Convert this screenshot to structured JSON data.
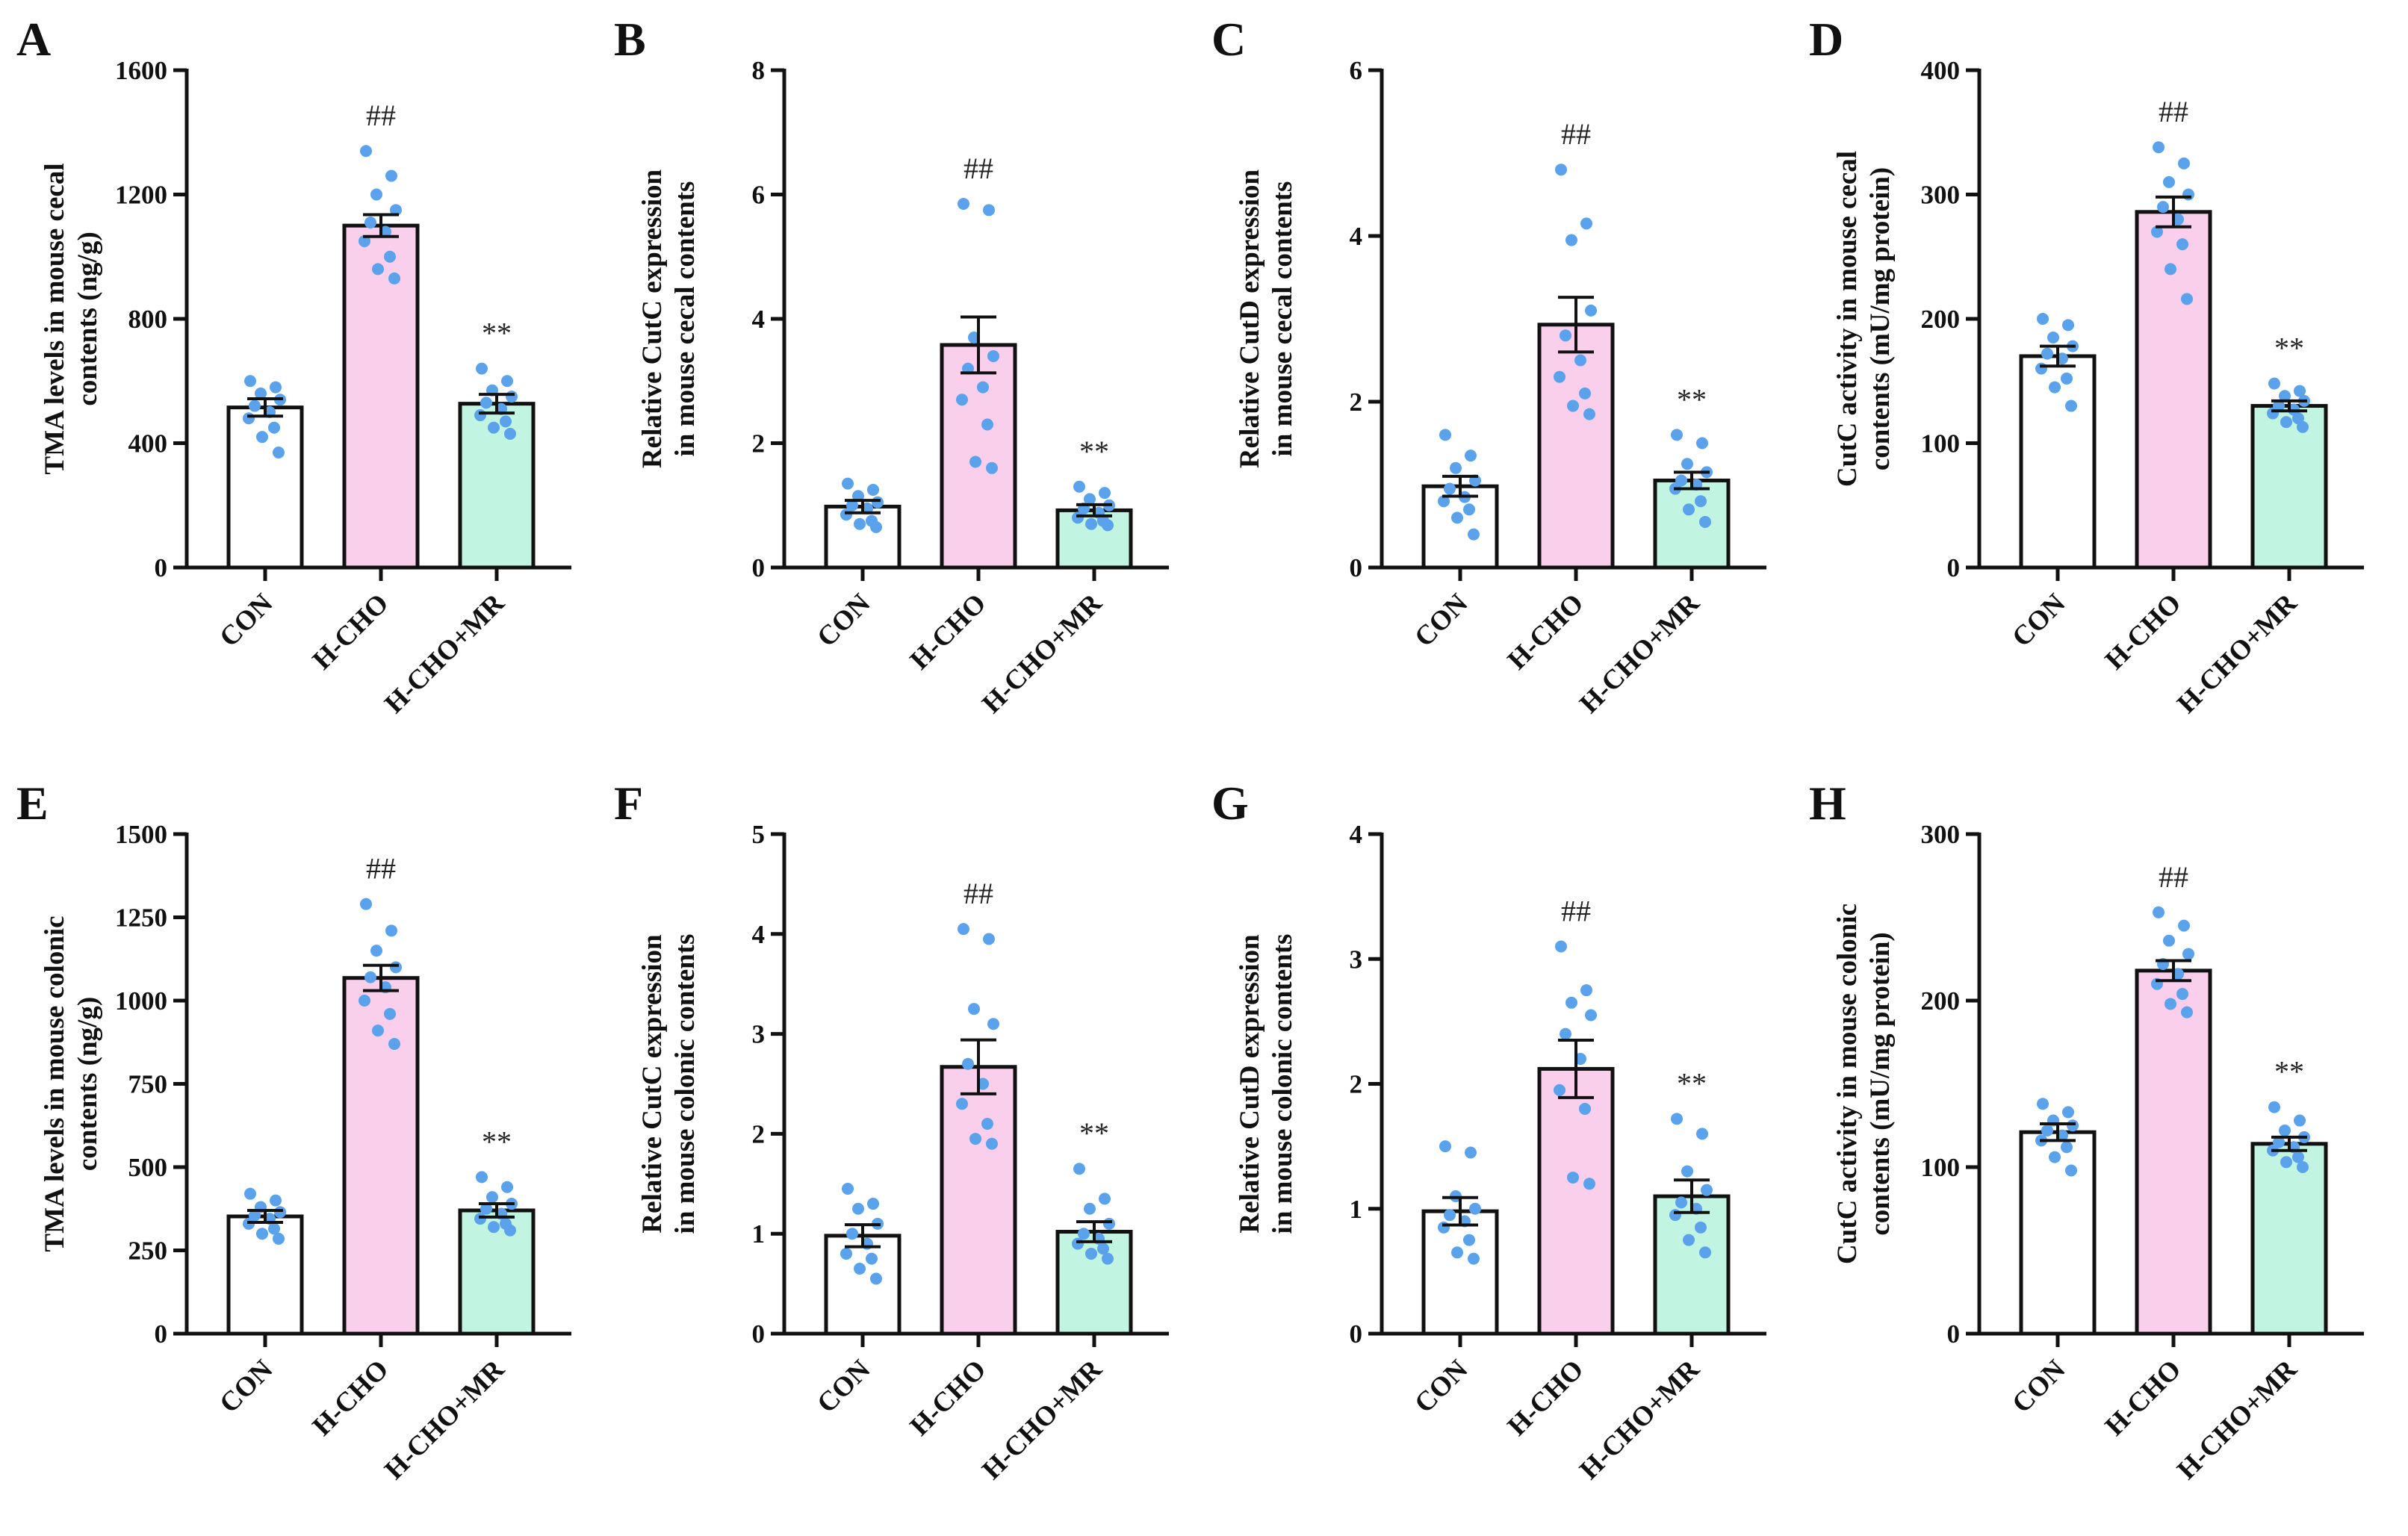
{
  "colors": {
    "con": "#ffffff",
    "hcho": "#f9cfeb",
    "hchomr": "#c2f5e1",
    "dot": "#5aa2ec",
    "ink": "#111111"
  },
  "chart_data": [
    {
      "panel": "A",
      "type": "bar",
      "title": "",
      "ylabel": [
        "TMA levels in mouse cecal",
        "contents (ng/g)"
      ],
      "categories": [
        "CON",
        "H-CHO",
        "H-CHO+MR"
      ],
      "ylim": [
        0,
        1600
      ],
      "yticks": [
        0,
        400,
        800,
        1200,
        1600
      ],
      "ytick_labels": [
        "0",
        "400",
        "800",
        "1200",
        "1600"
      ],
      "means": [
        515,
        1100,
        527
      ],
      "errors": [
        28,
        35,
        30
      ],
      "points": [
        [
          600,
          580,
          560,
          540,
          520,
          500,
          480,
          450,
          420,
          370
        ],
        [
          1340,
          1260,
          1200,
          1150,
          1110,
          1080,
          1050,
          1000,
          960,
          930
        ],
        [
          640,
          600,
          570,
          550,
          530,
          510,
          490,
          470,
          450,
          430
        ]
      ],
      "annotations": [
        "",
        "##",
        "**"
      ]
    },
    {
      "panel": "B",
      "type": "bar",
      "title": "",
      "ylabel": [
        "Relative CutC expression",
        "in mouse cecal contents"
      ],
      "categories": [
        "CON",
        "H-CHO",
        "H-CHO+MR"
      ],
      "ylim": [
        0,
        8
      ],
      "yticks": [
        0,
        2,
        4,
        6,
        8
      ],
      "ytick_labels": [
        "0",
        "2",
        "4",
        "6",
        "8"
      ],
      "means": [
        0.98,
        3.58,
        0.92
      ],
      "errors": [
        0.1,
        0.45,
        0.09
      ],
      "points": [
        [
          1.35,
          1.25,
          1.15,
          1.05,
          1.0,
          0.95,
          0.85,
          0.75,
          0.7,
          0.65
        ],
        [
          5.85,
          5.75,
          3.7,
          3.4,
          3.2,
          2.9,
          2.7,
          2.3,
          1.7,
          1.6
        ],
        [
          1.3,
          1.2,
          1.1,
          1.0,
          0.95,
          0.88,
          0.8,
          0.75,
          0.7,
          0.68
        ]
      ],
      "annotations": [
        "",
        "##",
        "**"
      ]
    },
    {
      "panel": "C",
      "type": "bar",
      "title": "",
      "ylabel": [
        "Relative CutD expression",
        "in mouse cecal contents"
      ],
      "categories": [
        "CON",
        "H-CHO",
        "H-CHO+MR"
      ],
      "ylim": [
        0,
        6
      ],
      "yticks": [
        0,
        2,
        4,
        6
      ],
      "ytick_labels": [
        "0",
        "2",
        "4",
        "6"
      ],
      "means": [
        0.98,
        2.93,
        1.05
      ],
      "errors": [
        0.12,
        0.33,
        0.1
      ],
      "points": [
        [
          1.6,
          1.35,
          1.2,
          1.05,
          0.95,
          0.85,
          0.8,
          0.7,
          0.6,
          0.4
        ],
        [
          4.8,
          4.15,
          3.95,
          3.1,
          2.8,
          2.5,
          2.3,
          2.1,
          1.95,
          1.85
        ],
        [
          1.6,
          1.5,
          1.25,
          1.15,
          1.05,
          1.0,
          0.95,
          0.8,
          0.7,
          0.55
        ]
      ],
      "annotations": [
        "",
        "##",
        "**"
      ]
    },
    {
      "panel": "D",
      "type": "bar",
      "title": "",
      "ylabel": [
        "CutC activity in mouse cecal",
        "contents (mU/mg protein)"
      ],
      "categories": [
        "CON",
        "H-CHO",
        "H-CHO+MR"
      ],
      "ylim": [
        0,
        400
      ],
      "yticks": [
        0,
        100,
        200,
        300,
        400
      ],
      "ytick_labels": [
        "0",
        "100",
        "200",
        "300",
        "400"
      ],
      "means": [
        170,
        286,
        130
      ],
      "errors": [
        8,
        12,
        4
      ],
      "points": [
        [
          200,
          195,
          185,
          178,
          172,
          168,
          160,
          152,
          145,
          130
        ],
        [
          338,
          325,
          310,
          300,
          290,
          280,
          270,
          260,
          240,
          216
        ],
        [
          148,
          142,
          138,
          134,
          130,
          127,
          124,
          120,
          117,
          113
        ]
      ],
      "annotations": [
        "",
        "##",
        "**"
      ]
    },
    {
      "panel": "E",
      "type": "bar",
      "title": "",
      "ylabel": [
        "TMA levels in mouse colonic",
        "contents (ng/g)"
      ],
      "categories": [
        "CON",
        "H-CHO",
        "H-CHO+MR"
      ],
      "ylim": [
        0,
        1500
      ],
      "yticks": [
        0,
        250,
        500,
        750,
        1000,
        1250,
        1500
      ],
      "ytick_labels": [
        "0",
        "250",
        "500",
        "750",
        "1000",
        "1250",
        "1500"
      ],
      "means": [
        352,
        1068,
        370
      ],
      "errors": [
        18,
        38,
        20
      ],
      "points": [
        [
          420,
          400,
          380,
          365,
          355,
          345,
          330,
          315,
          300,
          285
        ],
        [
          1290,
          1210,
          1150,
          1100,
          1070,
          1040,
          1000,
          960,
          910,
          870
        ],
        [
          470,
          440,
          410,
          390,
          375,
          360,
          345,
          330,
          320,
          310
        ]
      ],
      "annotations": [
        "",
        "##",
        "**"
      ]
    },
    {
      "panel": "F",
      "type": "bar",
      "title": "",
      "ylabel": [
        "Relative CutC expression",
        "in mouse colonic contents"
      ],
      "categories": [
        "CON",
        "H-CHO",
        "H-CHO+MR"
      ],
      "ylim": [
        0,
        5
      ],
      "yticks": [
        0,
        1,
        2,
        3,
        4,
        5
      ],
      "ytick_labels": [
        "0",
        "1",
        "2",
        "3",
        "4",
        "5"
      ],
      "means": [
        0.98,
        2.67,
        1.02
      ],
      "errors": [
        0.11,
        0.27,
        0.1
      ],
      "points": [
        [
          1.45,
          1.3,
          1.25,
          1.1,
          1.0,
          0.9,
          0.8,
          0.75,
          0.65,
          0.55
        ],
        [
          4.05,
          3.95,
          3.25,
          3.1,
          2.7,
          2.5,
          2.3,
          2.1,
          1.95,
          1.9
        ],
        [
          1.65,
          1.35,
          1.25,
          1.1,
          1.0,
          0.95,
          0.9,
          0.85,
          0.8,
          0.75
        ]
      ],
      "annotations": [
        "",
        "##",
        "**"
      ]
    },
    {
      "panel": "G",
      "type": "bar",
      "title": "",
      "ylabel": [
        "Relative CutD expression",
        "in mouse colonic contents"
      ],
      "categories": [
        "CON",
        "H-CHO",
        "H-CHO+MR"
      ],
      "ylim": [
        0,
        4
      ],
      "yticks": [
        0,
        1,
        2,
        3,
        4
      ],
      "ytick_labels": [
        "0",
        "1",
        "2",
        "3",
        "4"
      ],
      "means": [
        0.98,
        2.12,
        1.1
      ],
      "errors": [
        0.11,
        0.23,
        0.13
      ],
      "points": [
        [
          1.5,
          1.45,
          1.1,
          1.0,
          0.95,
          0.9,
          0.85,
          0.75,
          0.65,
          0.6
        ],
        [
          3.1,
          2.75,
          2.65,
          2.55,
          2.4,
          2.2,
          1.95,
          1.8,
          1.25,
          1.2
        ],
        [
          1.72,
          1.6,
          1.3,
          1.15,
          1.05,
          1.0,
          0.95,
          0.85,
          0.75,
          0.65
        ]
      ],
      "annotations": [
        "",
        "##",
        "**"
      ]
    },
    {
      "panel": "H",
      "type": "bar",
      "title": "",
      "ylabel": [
        "CutC activity in mouse colonic",
        "contents (mU/mg protein)"
      ],
      "categories": [
        "CON",
        "H-CHO",
        "H-CHO+MR"
      ],
      "ylim": [
        0,
        300
      ],
      "yticks": [
        0,
        100,
        200,
        300
      ],
      "ytick_labels": [
        "0",
        "100",
        "200",
        "300"
      ],
      "means": [
        121,
        218,
        114
      ],
      "errors": [
        5,
        6,
        4
      ],
      "points": [
        [
          138,
          133,
          128,
          125,
          122,
          119,
          116,
          112,
          106,
          98
        ],
        [
          253,
          245,
          236,
          228,
          222,
          216,
          210,
          204,
          198,
          193
        ],
        [
          136,
          128,
          122,
          118,
          115,
          112,
          110,
          106,
          103,
          100
        ]
      ],
      "annotations": [
        "",
        "##",
        "**"
      ]
    }
  ]
}
